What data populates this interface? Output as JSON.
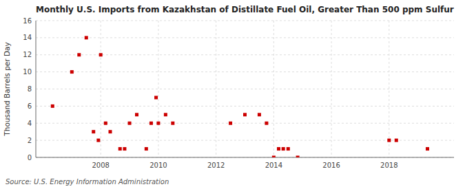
{
  "chart_data": {
    "type": "scatter",
    "title": "Monthly U.S. Imports from Kazakhstan of Distillate Fuel Oil, Greater Than 500 ppm Sulfur",
    "y_label": "Thousand Barrels per Day",
    "annotation": "Source: U.S. Energy Information Administration",
    "x": [
      2006.33,
      2007.0,
      2007.25,
      2007.5,
      2007.75,
      2007.92,
      2008.0,
      2008.17,
      2008.33,
      2008.67,
      2008.83,
      2009.0,
      2009.25,
      2009.58,
      2009.75,
      2009.92,
      2010.0,
      2010.25,
      2010.5,
      2012.5,
      2013.0,
      2013.5,
      2013.75,
      2014.0,
      2014.17,
      2014.33,
      2014.5,
      2014.83,
      2018.0,
      2018.25,
      2019.33
    ],
    "values": [
      6,
      10,
      12,
      14,
      3,
      2,
      12,
      4,
      3,
      1,
      1,
      4,
      5,
      1,
      4,
      7,
      4,
      5,
      4,
      4,
      5,
      5,
      4,
      0,
      1,
      1,
      1,
      0,
      2,
      2,
      1
    ],
    "color": "#cc0000",
    "marker": "square",
    "grid": true,
    "xlim": [
      2005.75,
      2020.25
    ],
    "xticks": [
      2008,
      2010,
      2012,
      2014,
      2016,
      2018
    ],
    "ylim": [
      0,
      16
    ],
    "yticks": [
      0,
      2,
      4,
      6,
      8,
      10,
      12,
      14,
      16
    ]
  }
}
